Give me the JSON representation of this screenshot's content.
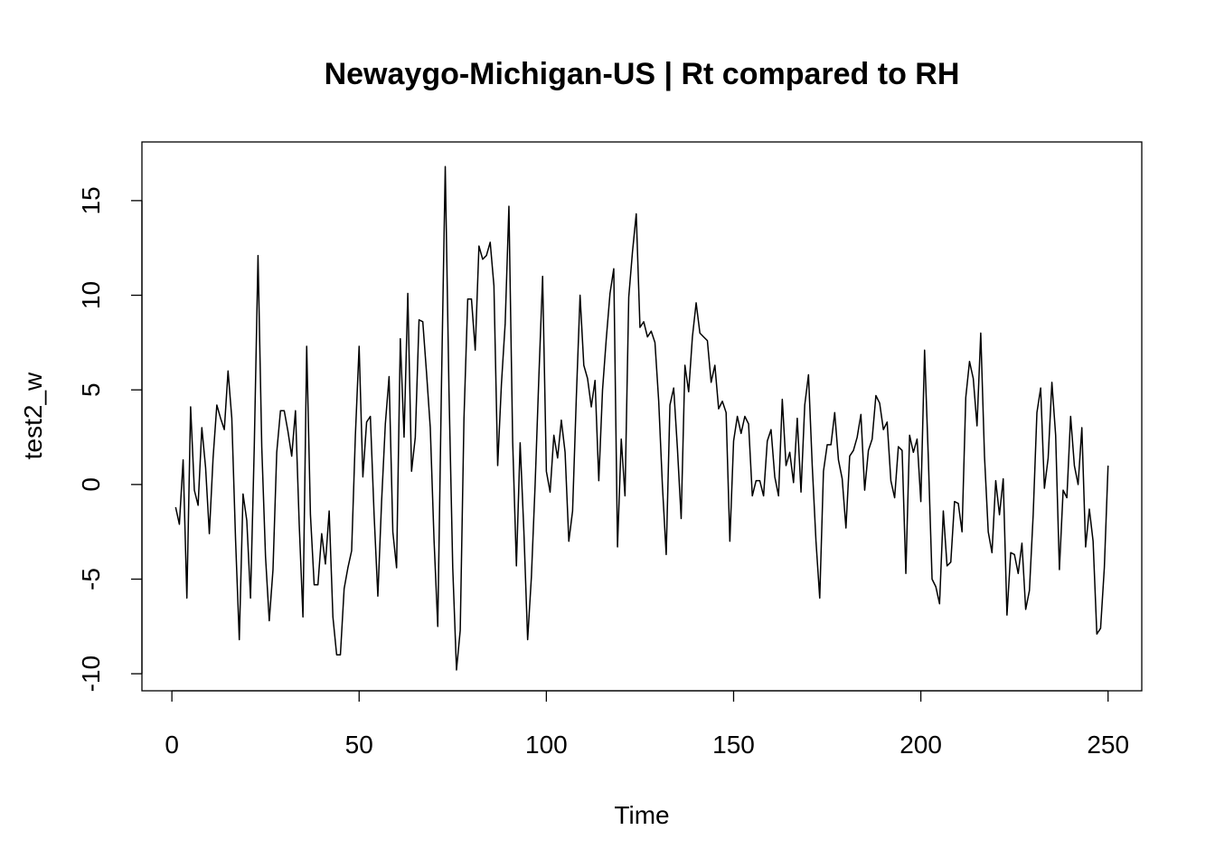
{
  "chart_data": {
    "type": "line",
    "title": "Newaygo-Michigan-US | Rt compared to RH",
    "xlabel": "Time",
    "ylabel": "test2_w",
    "xlim": [
      -8,
      259
    ],
    "ylim": [
      -10.9,
      18.1
    ],
    "x_ticks": [
      0,
      50,
      100,
      150,
      200,
      250
    ],
    "y_ticks": [
      -10,
      -5,
      0,
      5,
      10,
      15
    ],
    "x_tick_labels": [
      "0",
      "50",
      "100",
      "150",
      "200",
      "250"
    ],
    "y_tick_labels": [
      "-10",
      "-5",
      "0",
      "5",
      "10",
      "15"
    ],
    "grid": false,
    "series": [
      {
        "x_start": 1,
        "values": [
          -1.2,
          -2.1,
          1.3,
          -6.0,
          4.1,
          -0.3,
          -1.1,
          3.0,
          0.9,
          -2.6,
          1.4,
          4.2,
          3.5,
          2.9,
          6.0,
          3.5,
          -2.9,
          -8.2,
          -0.5,
          -1.9,
          -6.0,
          2.0,
          12.1,
          2.0,
          -3.8,
          -7.2,
          -4.5,
          1.7,
          3.9,
          3.9,
          2.8,
          1.5,
          3.9,
          -2.1,
          -7.0,
          7.3,
          -1.6,
          -5.3,
          -5.3,
          -2.6,
          -4.2,
          -1.4,
          -7.0,
          -9.0,
          -9.0,
          -5.5,
          -4.4,
          -3.5,
          2.6,
          7.3,
          0.4,
          3.3,
          3.6,
          -1.6,
          -5.9,
          -0.9,
          3.2,
          5.7,
          -2.5,
          -4.4,
          7.7,
          2.5,
          10.1,
          0.7,
          2.5,
          8.7,
          8.6,
          5.9,
          3.0,
          -2.9,
          -7.5,
          5.4,
          16.8,
          4.9,
          -4.4,
          -9.8,
          -7.7,
          3.5,
          9.8,
          9.8,
          7.1,
          12.6,
          11.9,
          12.1,
          12.8,
          10.5,
          1.0,
          5.3,
          8.5,
          14.7,
          2.3,
          -4.3,
          2.2,
          -2.5,
          -8.2,
          -4.9,
          0.0,
          5.7,
          11.0,
          0.7,
          -0.4,
          2.6,
          1.4,
          3.4,
          1.7,
          -3.0,
          -1.4,
          4.6,
          10.0,
          6.3,
          5.6,
          4.1,
          5.5,
          0.2,
          5.0,
          7.7,
          10.1,
          11.4,
          -3.3,
          2.4,
          -0.6,
          9.9,
          12.3,
          14.3,
          8.3,
          8.6,
          7.8,
          8.1,
          7.5,
          4.4,
          -0.1,
          -3.7,
          4.2,
          5.1,
          1.9,
          -1.8,
          6.3,
          4.9,
          7.8,
          9.6,
          8.0,
          7.8,
          7.6,
          5.4,
          6.3,
          4.0,
          4.4,
          3.8,
          -3.0,
          2.3,
          3.6,
          2.7,
          3.6,
          3.2,
          -0.6,
          0.2,
          0.2,
          -0.6,
          2.3,
          2.9,
          0.4,
          -0.6,
          4.5,
          1.0,
          1.7,
          0.1,
          3.5,
          -0.4,
          4.2,
          5.8,
          1.0,
          -3.0,
          -6.0,
          0.7,
          2.1,
          2.1,
          3.8,
          1.3,
          0.3,
          -2.3,
          1.5,
          1.8,
          2.5,
          3.7,
          -0.3,
          1.8,
          2.4,
          4.7,
          4.3,
          2.9,
          3.3,
          0.2,
          -0.7,
          2.0,
          1.8,
          -4.7,
          2.6,
          1.7,
          2.4,
          -0.9,
          7.1,
          1.4,
          -5.0,
          -5.4,
          -6.3,
          -1.4,
          -4.3,
          -4.1,
          -0.9,
          -1.0,
          -2.5,
          4.6,
          6.5,
          5.6,
          3.1,
          8.0,
          1.5,
          -2.5,
          -3.6,
          0.2,
          -1.6,
          0.3,
          -6.9,
          -3.6,
          -3.7,
          -4.7,
          -3.1,
          -6.6,
          -5.6,
          -1.6,
          3.8,
          5.1,
          -0.2,
          1.4,
          5.4,
          2.6,
          -4.5,
          -0.3,
          -0.7,
          3.6,
          1.0,
          0.0,
          3.0,
          -3.3,
          -1.3,
          -3.0,
          -7.9,
          -7.6,
          -4.4,
          1.0
        ]
      }
    ]
  }
}
